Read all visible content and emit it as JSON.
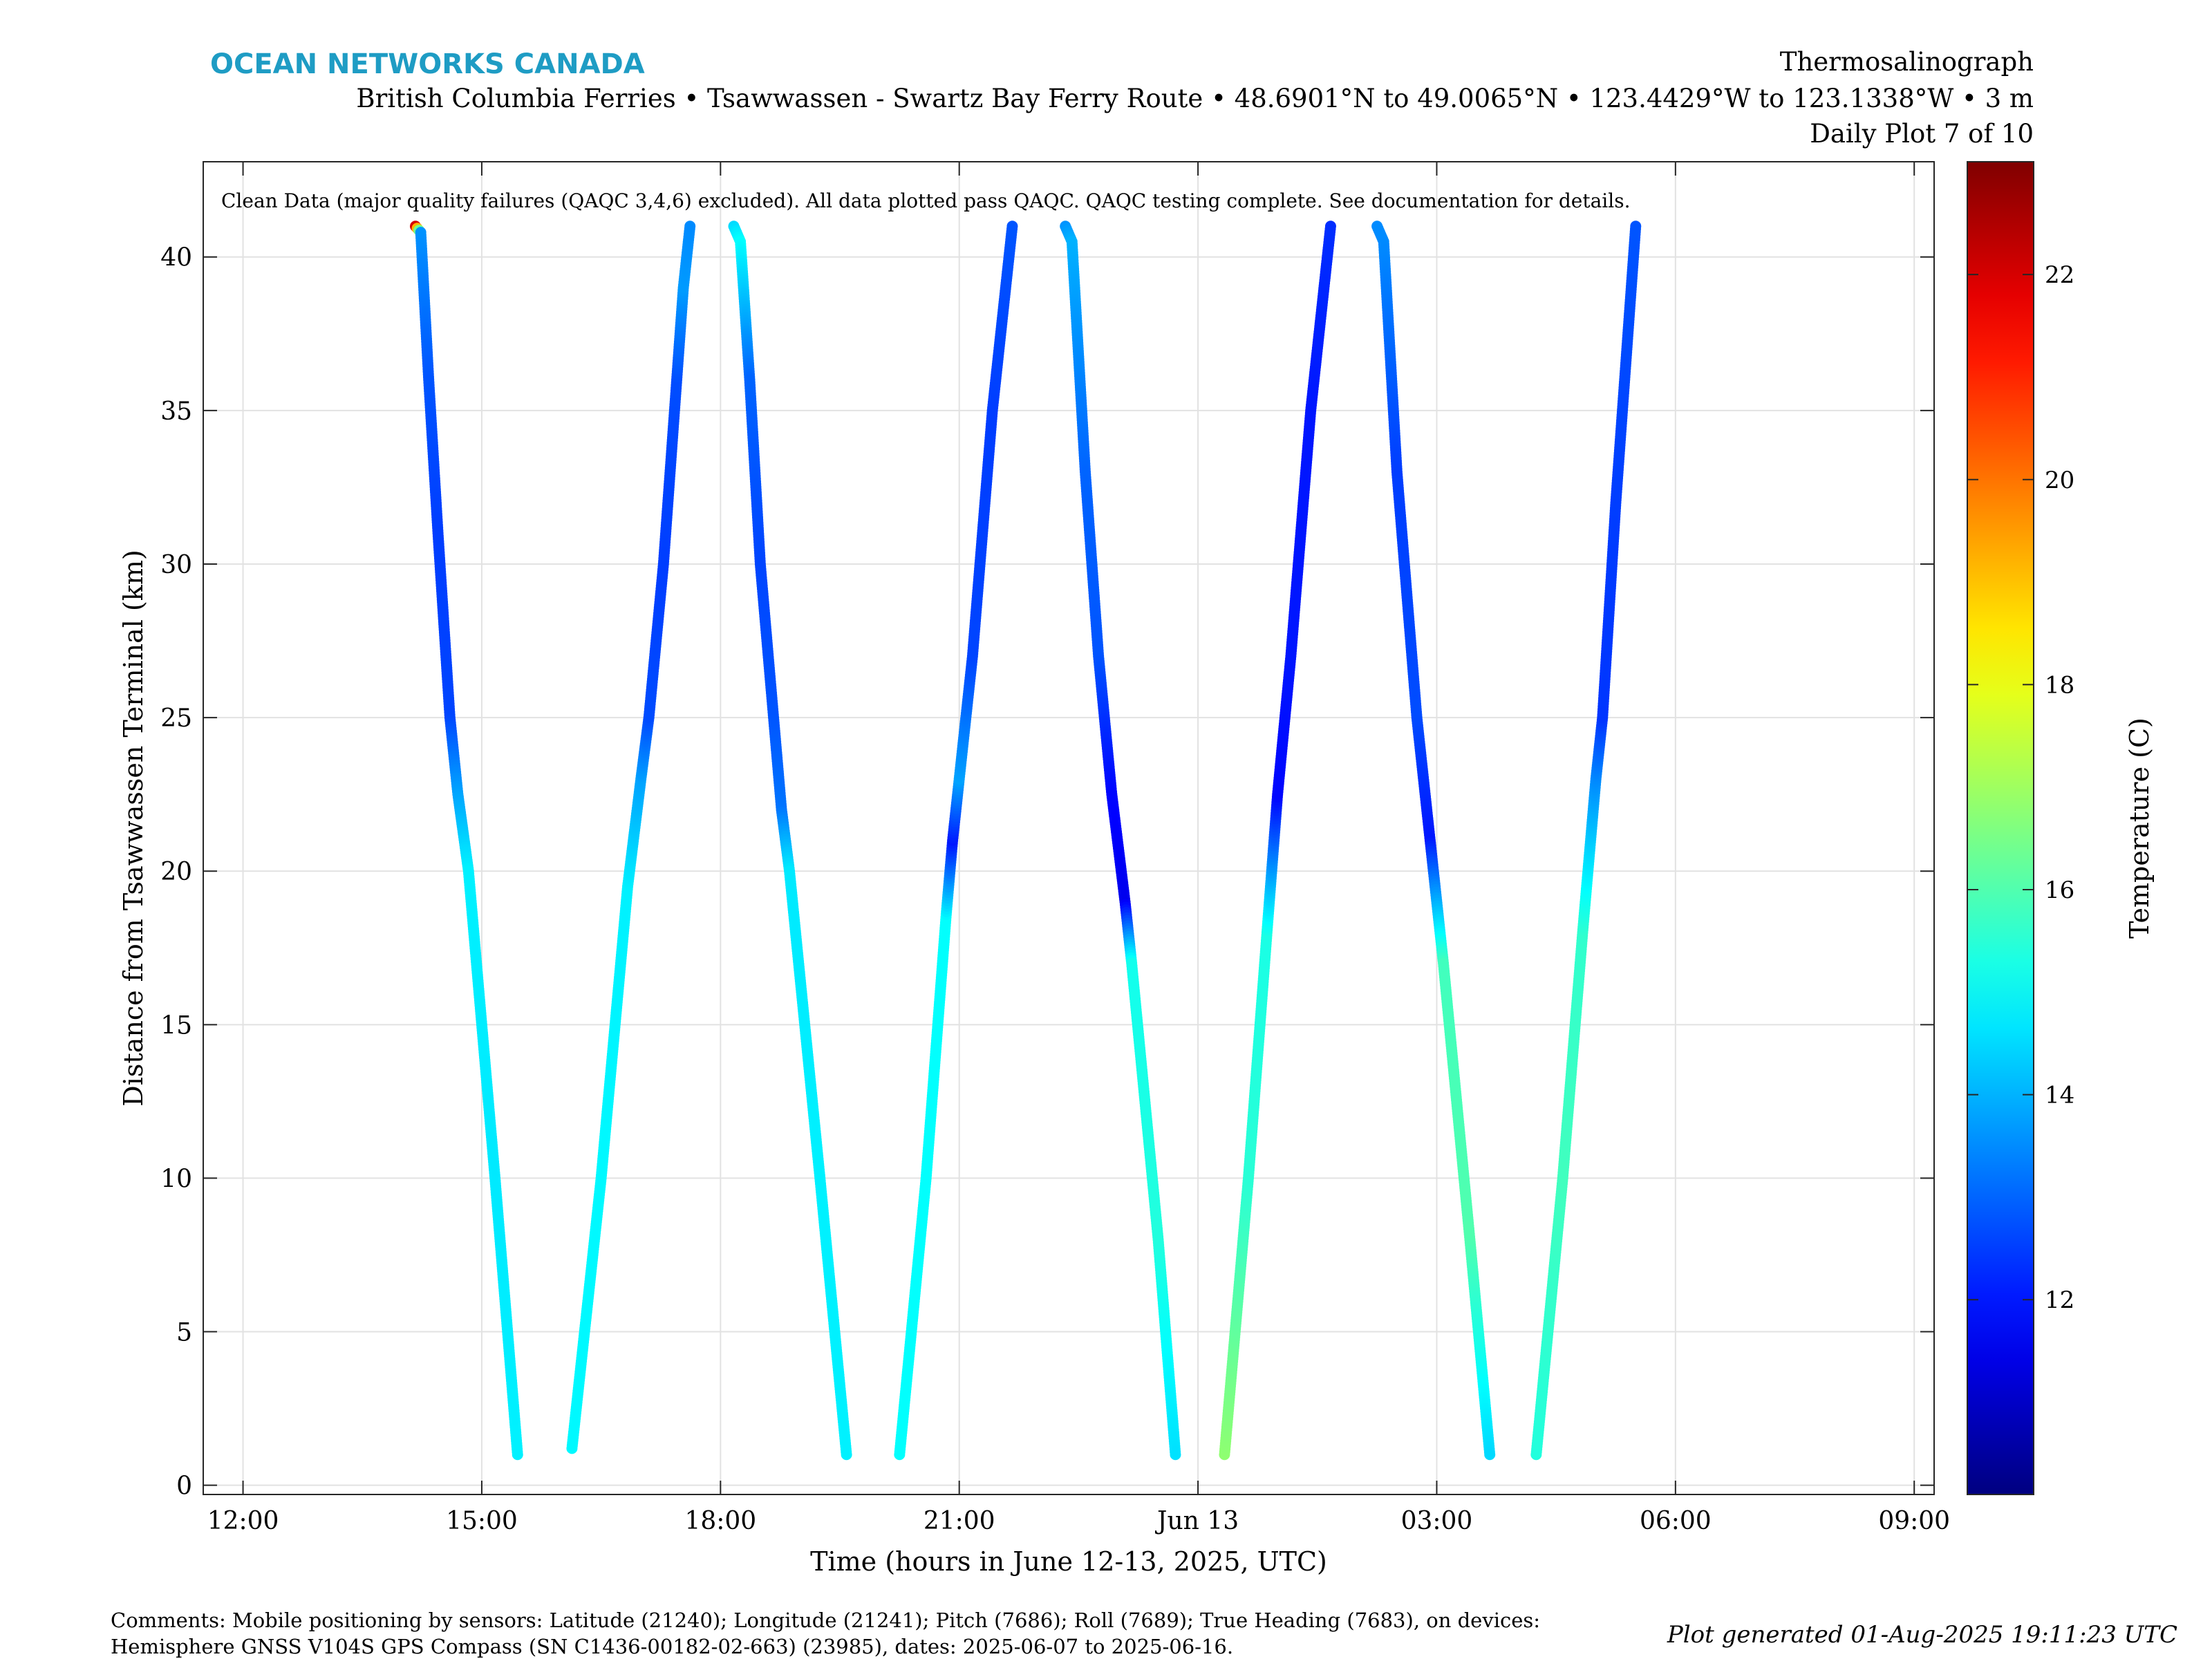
{
  "header": {
    "brand": "OCEAN NETWORKS CANADA",
    "brand_color": "#1e9cc4",
    "title": "Thermosalinograph",
    "subtitle": "British Columbia Ferries • Tsawwassen - Swartz Bay Ferry Route • 48.6901°N to 49.0065°N • 123.4429°W to 123.1338°W • 3 m",
    "plot_index": "Daily Plot 7 of 10"
  },
  "chart_data": {
    "type": "scatter",
    "annotation": "Clean Data (major quality failures (QAQC 3,4,6) excluded). All data plotted pass QAQC. QAQC testing complete. See documentation for details.",
    "xlabel": "Time (hours in June 12-13, 2025, UTC)",
    "ylabel": "Distance from Tsawwassen Terminal (km)",
    "xlim": [
      "2025-06-12 11:30",
      "2025-06-13 09:15"
    ],
    "ylim": [
      -0.3,
      43.1
    ],
    "x_ticks": [
      {
        "t": "2025-06-12 12:00",
        "label": "12:00"
      },
      {
        "t": "2025-06-12 15:00",
        "label": "15:00"
      },
      {
        "t": "2025-06-12 18:00",
        "label": "18:00"
      },
      {
        "t": "2025-06-12 21:00",
        "label": "21:00"
      },
      {
        "t": "2025-06-13 00:00",
        "label": "Jun 13"
      },
      {
        "t": "2025-06-13 03:00",
        "label": "03:00"
      },
      {
        "t": "2025-06-13 06:00",
        "label": "06:00"
      },
      {
        "t": "2025-06-13 09:00",
        "label": "09:00"
      }
    ],
    "y_ticks": [
      0,
      5,
      10,
      15,
      20,
      25,
      30,
      35,
      40
    ],
    "grid": true,
    "colorbar": {
      "label": "Temperature (C)",
      "range": [
        10.1,
        23.1
      ],
      "ticks": [
        12,
        14,
        16,
        18,
        20,
        22
      ],
      "colormap": "jet"
    },
    "series": [
      {
        "points": [
          {
            "t": "2025-06-12 14:10",
            "km": 41.0,
            "temp": 22.0
          },
          {
            "t": "2025-06-12 14:14",
            "km": 40.8,
            "temp": 13.6
          },
          {
            "t": "2025-06-12 14:20",
            "km": 36.0,
            "temp": 12.8
          },
          {
            "t": "2025-06-12 14:27",
            "km": 31.0,
            "temp": 12.5
          },
          {
            "t": "2025-06-12 14:36",
            "km": 25.0,
            "temp": 12.6
          },
          {
            "t": "2025-06-12 14:42",
            "km": 22.5,
            "temp": 13.8
          },
          {
            "t": "2025-06-12 14:50",
            "km": 20.0,
            "temp": 14.8
          },
          {
            "t": "2025-06-12 15:10",
            "km": 10.0,
            "temp": 14.7
          },
          {
            "t": "2025-06-12 15:27",
            "km": 1.0,
            "temp": 14.8
          }
        ]
      },
      {
        "points": [
          {
            "t": "2025-06-12 16:08",
            "km": 1.2,
            "temp": 14.9
          },
          {
            "t": "2025-06-12 16:30",
            "km": 10.0,
            "temp": 14.9
          },
          {
            "t": "2025-06-12 16:50",
            "km": 19.5,
            "temp": 14.8
          },
          {
            "t": "2025-06-12 17:00",
            "km": 23.0,
            "temp": 13.8
          },
          {
            "t": "2025-06-12 17:06",
            "km": 25.0,
            "temp": 12.7
          },
          {
            "t": "2025-06-12 17:17",
            "km": 30.0,
            "temp": 12.5
          },
          {
            "t": "2025-06-12 17:27",
            "km": 36.0,
            "temp": 12.7
          },
          {
            "t": "2025-06-12 17:32",
            "km": 39.0,
            "temp": 13.7
          },
          {
            "t": "2025-06-12 17:37",
            "km": 41.0,
            "temp": 13.5
          }
        ]
      },
      {
        "points": [
          {
            "t": "2025-06-12 18:10",
            "km": 41.0,
            "temp": 14.5
          },
          {
            "t": "2025-06-12 18:15",
            "km": 40.5,
            "temp": 15.0
          },
          {
            "t": "2025-06-12 18:22",
            "km": 36.0,
            "temp": 13.0
          },
          {
            "t": "2025-06-12 18:30",
            "km": 30.0,
            "temp": 12.6
          },
          {
            "t": "2025-06-12 18:40",
            "km": 25.0,
            "temp": 12.8
          },
          {
            "t": "2025-06-12 18:46",
            "km": 22.0,
            "temp": 13.2
          },
          {
            "t": "2025-06-12 18:52",
            "km": 20.0,
            "temp": 14.7
          },
          {
            "t": "2025-06-12 19:15",
            "km": 10.0,
            "temp": 14.8
          },
          {
            "t": "2025-06-12 19:35",
            "km": 1.0,
            "temp": 14.8
          }
        ]
      },
      {
        "points": [
          {
            "t": "2025-06-12 20:15",
            "km": 1.0,
            "temp": 15.0
          },
          {
            "t": "2025-06-12 20:35",
            "km": 10.0,
            "temp": 15.0
          },
          {
            "t": "2025-06-12 20:50",
            "km": 18.5,
            "temp": 15.0
          },
          {
            "t": "2025-06-12 20:55",
            "km": 21.0,
            "temp": 12.0
          },
          {
            "t": "2025-06-12 21:00",
            "km": 23.0,
            "temp": 13.8
          },
          {
            "t": "2025-06-12 21:10",
            "km": 27.0,
            "temp": 12.6
          },
          {
            "t": "2025-06-12 21:25",
            "km": 35.0,
            "temp": 12.5
          },
          {
            "t": "2025-06-12 21:40",
            "km": 41.0,
            "temp": 12.8
          }
        ]
      },
      {
        "points": [
          {
            "t": "2025-06-12 22:20",
            "km": 41.0,
            "temp": 13.6
          },
          {
            "t": "2025-06-12 22:25",
            "km": 40.5,
            "temp": 14.0
          },
          {
            "t": "2025-06-12 22:35",
            "km": 33.0,
            "temp": 13.0
          },
          {
            "t": "2025-06-12 22:45",
            "km": 27.0,
            "temp": 12.8
          },
          {
            "t": "2025-06-12 22:55",
            "km": 22.5,
            "temp": 11.8
          },
          {
            "t": "2025-06-12 23:05",
            "km": 19.0,
            "temp": 11.5
          },
          {
            "t": "2025-06-12 23:10",
            "km": 17.0,
            "temp": 15.2
          },
          {
            "t": "2025-06-12 23:30",
            "km": 8.0,
            "temp": 15.4
          },
          {
            "t": "2025-06-12 23:43",
            "km": 1.0,
            "temp": 14.6
          }
        ]
      },
      {
        "points": [
          {
            "t": "2025-06-13 00:20",
            "km": 1.0,
            "temp": 16.8
          },
          {
            "t": "2025-06-13 00:38",
            "km": 10.0,
            "temp": 15.5
          },
          {
            "t": "2025-06-13 00:52",
            "km": 18.0,
            "temp": 15.3
          },
          {
            "t": "2025-06-13 01:00",
            "km": 22.5,
            "temp": 11.8
          },
          {
            "t": "2025-06-13 01:10",
            "km": 27.0,
            "temp": 12.0
          },
          {
            "t": "2025-06-13 01:25",
            "km": 35.0,
            "temp": 12.0
          },
          {
            "t": "2025-06-13 01:40",
            "km": 41.0,
            "temp": 12.3
          }
        ]
      },
      {
        "points": [
          {
            "t": "2025-06-13 02:15",
            "km": 41.0,
            "temp": 13.5
          },
          {
            "t": "2025-06-13 02:20",
            "km": 40.5,
            "temp": 13.5
          },
          {
            "t": "2025-06-13 02:30",
            "km": 33.0,
            "temp": 12.5
          },
          {
            "t": "2025-06-13 02:45",
            "km": 25.0,
            "temp": 12.7
          },
          {
            "t": "2025-06-13 02:55",
            "km": 21.0,
            "temp": 12.0
          },
          {
            "t": "2025-06-13 03:05",
            "km": 17.0,
            "temp": 15.8
          },
          {
            "t": "2025-06-13 03:25",
            "km": 8.0,
            "temp": 16.0
          },
          {
            "t": "2025-06-13 03:40",
            "km": 1.0,
            "temp": 14.5
          }
        ]
      },
      {
        "points": [
          {
            "t": "2025-06-13 04:15",
            "km": 1.0,
            "temp": 15.4
          },
          {
            "t": "2025-06-13 04:35",
            "km": 10.0,
            "temp": 15.8
          },
          {
            "t": "2025-06-13 04:50",
            "km": 18.0,
            "temp": 15.6
          },
          {
            "t": "2025-06-13 05:00",
            "km": 23.0,
            "temp": 13.5
          },
          {
            "t": "2025-06-13 05:05",
            "km": 25.0,
            "temp": 12.4
          },
          {
            "t": "2025-06-13 05:15",
            "km": 32.0,
            "temp": 12.5
          },
          {
            "t": "2025-06-13 05:30",
            "km": 41.0,
            "temp": 12.8
          }
        ]
      }
    ]
  },
  "footer": {
    "comments_line1": "Comments: Mobile positioning by sensors: Latitude (21240); Longitude (21241); Pitch (7686); Roll (7689); True Heading (7683), on devices:",
    "comments_line2": "Hemisphere GNSS V104S GPS Compass (SN C1436-00182-02-663) (23985), dates: 2025-06-07 to 2025-06-16.",
    "generated": "Plot generated 01-Aug-2025 19:11:23 UTC"
  }
}
